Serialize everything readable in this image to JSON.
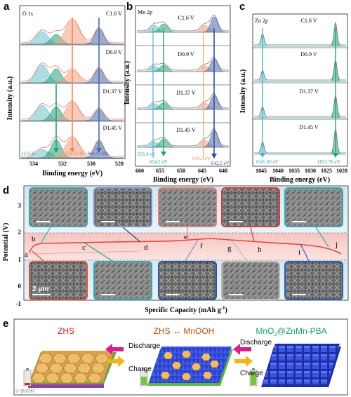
{
  "panel_a": {
    "letter": "a",
    "element": "O 1s",
    "ylabel": "Intensity (a.u.)",
    "xlabel": "Binding energy (eV)",
    "xticks": [
      "534",
      "532",
      "530",
      "528"
    ],
    "states": [
      "C1.6 V",
      "D0.9 V",
      "D1.37 V",
      "D1.45 V"
    ],
    "peak_labels": [
      "H-O-H",
      "Mn-O-H",
      "Mn-O-Mn"
    ],
    "so4_label": "SO",
    "so4_sub": "4",
    "so4_sup": "2-",
    "colors": {
      "hoh": "#6bc3c9",
      "so4": "#2aa07a",
      "mnoh": "#f2a07e",
      "mnomn": "#4c6aa8"
    }
  },
  "panel_b": {
    "letter": "b",
    "element": "Mn 2p",
    "ylabel": "Intensity (a.u.)",
    "xlabel": "Binding energy (eV)",
    "xticks": [
      "660",
      "655",
      "650",
      "645",
      "640"
    ],
    "states": [
      "C1.6 V",
      "D0.9 V",
      "D1.37 V",
      "D1.45 V"
    ],
    "annotations": [
      "656.4 eV",
      "654.2 eV",
      "644.5 eV",
      "642.5 eV"
    ]
  },
  "panel_c": {
    "letter": "c",
    "element": "Zn 2p",
    "ylabel": "Intensity (a.u.)",
    "xlabel": "Binding energy (eV)",
    "xticks": [
      "1045",
      "1040",
      "1035",
      "1030",
      "1025",
      "1020"
    ],
    "states": [
      "C1.6 V",
      "D0.9 V",
      "D1.37 V",
      "D1.45 V"
    ],
    "annotations": [
      "1045.03 eV",
      "1021.76 eV"
    ]
  },
  "panel_d": {
    "letter": "d",
    "ylabel": "Potential (V)",
    "xlabel": "Specific Capacity (mAh g",
    "xlabel_sup": "-1",
    "xlabel_end": ")",
    "yticks": [
      "3",
      "2",
      "1",
      "0",
      "-1"
    ],
    "point_labels": [
      "a",
      "b",
      "c",
      "d",
      "e",
      "f",
      "g",
      "h",
      "i",
      "j"
    ],
    "scale_bar": "2 μm",
    "frame_colors": [
      "#e0533d",
      "#3aa7a7",
      "#2f4f9a",
      "#7a8fc7",
      "#e67f77",
      "#bcbcbc",
      "#d83a3a",
      "#4a56b5",
      "#3aa7a7",
      "#2d7ba8"
    ]
  },
  "panel_e": {
    "letter": "e",
    "stage1": "ZHS",
    "stage2": "ZHS ↔ MnOOH",
    "stage3_main": "MnO",
    "stage3_sub": "2",
    "stage3_rest": "@ZnMn-PBA",
    "discharge": "Discharge",
    "charge": "Charge",
    "colors": {
      "stage1": "#d62828",
      "stage2": "#b8520e",
      "stage3": "#1f9d6b",
      "zhs": "#e8b15f",
      "mnooh": "#3b54d8",
      "pba": "#2d4fd8",
      "base": "#6ab83c"
    }
  },
  "watermark": "© 新材料"
}
